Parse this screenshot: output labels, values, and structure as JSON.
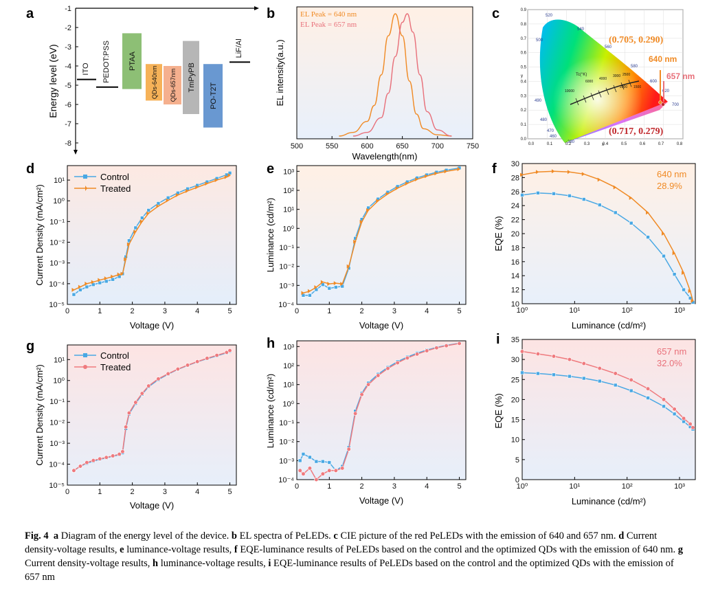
{
  "panels": {
    "a": {
      "letter": "a",
      "ylabel": "Energy level (eV)",
      "ylim": [
        -8,
        -1
      ],
      "yticks": [
        "-1",
        "-2",
        "-3",
        "-4",
        "-5",
        "-6",
        "-7",
        "-8"
      ],
      "layers": [
        {
          "name": "ITO",
          "type": "line",
          "level": -4.7,
          "color": "#000000"
        },
        {
          "name": "PEDOT:PSS",
          "type": "line",
          "level": -5.1,
          "color": "#000000"
        },
        {
          "name": "PTAA",
          "type": "band",
          "top": -2.3,
          "bottom": -5.2,
          "color": "#79b45d"
        },
        {
          "name": "QDs-640nm",
          "type": "band",
          "top": -3.9,
          "bottom": -5.8,
          "color": "#f5a53b"
        },
        {
          "name": "QDs-657nm",
          "type": "band",
          "top": -4.0,
          "bottom": -6.0,
          "color": "#f3a27a"
        },
        {
          "name": "TmPyPB",
          "type": "band",
          "top": -2.7,
          "bottom": -6.5,
          "color": "#a9a9a9"
        },
        {
          "name": "PO-T2T",
          "type": "band",
          "top": -3.9,
          "bottom": -7.2,
          "color": "#4f86c9"
        },
        {
          "name": "LiF/Al",
          "type": "line",
          "level": -3.8,
          "color": "#000000"
        }
      ]
    },
    "b": {
      "letter": "b",
      "ylabel": "EL intensity(a.u.)",
      "xlabel": "Wavelength(nm)",
      "xticks": [
        "500",
        "550",
        "600",
        "650",
        "700",
        "750"
      ],
      "legend": [
        "EL Peak = 640 nm",
        "EL Peak = 657 nm"
      ],
      "colors": [
        "#f08a24",
        "#e8707a"
      ]
    },
    "c": {
      "letter": "c",
      "coord1": "(0.705, 0.290)",
      "coord2": "(0.717, 0.279)",
      "label1": "640 nm",
      "label2": "657 nm",
      "xticks": [
        "0.0",
        "0.1",
        "0.2",
        "0.3",
        "0.4",
        "0.5",
        "0.6",
        "0.7",
        "0.8"
      ],
      "yticks": [
        "0.0",
        "0.1",
        "0.2",
        "0.3",
        "0.4",
        "0.5",
        "0.6",
        "0.7",
        "0.8",
        "0.9"
      ],
      "wavelengths": [
        "520",
        "540",
        "560",
        "580",
        "600",
        "620",
        "700",
        "500",
        "490",
        "480",
        "470",
        "460",
        "380"
      ],
      "locus_label": "Tc(°K)",
      "temps": [
        "10000",
        "6000",
        "4000",
        "3000",
        "2500",
        "2000",
        "1500"
      ],
      "x_axis_letter": "x",
      "y_axis_letter": "y"
    },
    "d": {
      "letter": "d",
      "ylabel": "Current Density (mA/cm²)",
      "xlabel": "Voltage (V)",
      "xticks": [
        "0",
        "1",
        "2",
        "3",
        "4",
        "5"
      ],
      "yticks": [
        "10⁻⁵",
        "10⁻⁴",
        "10⁻³",
        "10⁻²",
        "10⁻¹",
        "10⁰",
        "10¹"
      ],
      "legend": [
        "Control",
        "Treated"
      ]
    },
    "e": {
      "letter": "e",
      "ylabel": "Luminance (cd/m²)",
      "xlabel": "Voltage (V)",
      "xticks": [
        "0",
        "1",
        "2",
        "3",
        "4",
        "5"
      ],
      "yticks": [
        "10⁻⁴",
        "10⁻³",
        "10⁻²",
        "10⁻¹",
        "10⁰",
        "10¹",
        "10²",
        "10³"
      ]
    },
    "f": {
      "letter": "f",
      "ylabel": "EQE (%)",
      "xlabel": "Luminance (cd/m²)",
      "xticks": [
        "10⁰",
        "10¹",
        "10²",
        "10³"
      ],
      "yticks": [
        "10",
        "12",
        "14",
        "16",
        "18",
        "20",
        "22",
        "24",
        "26",
        "28",
        "30"
      ],
      "annot1": "640 nm",
      "annot2": "28.9%"
    },
    "g": {
      "letter": "g",
      "ylabel": "Current Density (mA/cm²)",
      "xlabel": "Voltage (V)",
      "xticks": [
        "0",
        "1",
        "2",
        "3",
        "4",
        "5"
      ],
      "yticks": [
        "10⁻⁵",
        "10⁻⁴",
        "10⁻³",
        "10⁻²",
        "10⁻¹",
        "10⁰",
        "10¹"
      ],
      "legend": [
        "Control",
        "Treated"
      ]
    },
    "h": {
      "letter": "h",
      "ylabel": "Luminance (cd/m²)",
      "xlabel": "Voltage (V)",
      "xticks": [
        "0",
        "1",
        "2",
        "3",
        "4",
        "5"
      ],
      "yticks": [
        "10⁻⁴",
        "10⁻³",
        "10⁻²",
        "10⁻¹",
        "10⁰",
        "10¹",
        "10²",
        "10³"
      ]
    },
    "i": {
      "letter": "i",
      "ylabel": "EQE (%)",
      "xlabel": "Luminance (cd/m²)",
      "xticks": [
        "10⁰",
        "10¹",
        "10²",
        "10³"
      ],
      "yticks": [
        "0",
        "5",
        "10",
        "15",
        "20",
        "25",
        "30",
        "35"
      ],
      "annot1": "657 nm",
      "annot2": "32.0%"
    }
  },
  "chart_data": [
    {
      "type": "line",
      "panel": "b",
      "title": "",
      "xlabel": "Wavelength(nm)",
      "ylabel": "EL intensity(a.u.)",
      "xlim": [
        500,
        750
      ],
      "series": [
        {
          "name": "EL Peak = 640 nm",
          "x": [
            560,
            580,
            600,
            610,
            620,
            630,
            640,
            650,
            660,
            670,
            680,
            700,
            720
          ],
          "values": [
            0.0,
            0.03,
            0.12,
            0.25,
            0.5,
            0.82,
            1.0,
            0.82,
            0.45,
            0.18,
            0.06,
            0.01,
            0.0
          ]
        },
        {
          "name": "EL Peak = 657 nm",
          "x": [
            580,
            600,
            620,
            630,
            640,
            650,
            657,
            665,
            675,
            685,
            700,
            720
          ],
          "values": [
            0.0,
            0.03,
            0.15,
            0.35,
            0.65,
            0.93,
            1.0,
            0.85,
            0.5,
            0.2,
            0.05,
            0.0
          ]
        }
      ]
    },
    {
      "type": "line",
      "panel": "d",
      "xlabel": "Voltage (V)",
      "ylabel": "Current Density (mA/cm²)",
      "yscale": "log",
      "xlim": [
        0,
        5.2
      ],
      "ylim": [
        1e-05,
        50
      ],
      "series": [
        {
          "name": "Control",
          "x": [
            0.2,
            0.4,
            0.6,
            0.8,
            1.0,
            1.2,
            1.4,
            1.6,
            1.7,
            1.8,
            1.9,
            2.1,
            2.3,
            2.5,
            2.8,
            3.1,
            3.4,
            3.7,
            4.0,
            4.3,
            4.6,
            4.9,
            5.0
          ],
          "values": [
            3e-05,
            5e-05,
            7e-05,
            9e-05,
            0.00011,
            0.00013,
            0.00016,
            0.00022,
            0.0003,
            0.002,
            0.012,
            0.05,
            0.15,
            0.35,
            0.75,
            1.4,
            2.4,
            3.8,
            5.6,
            8.2,
            12,
            18,
            22
          ]
        },
        {
          "name": "Treated",
          "x": [
            0.2,
            0.4,
            0.6,
            0.8,
            1.0,
            1.2,
            1.4,
            1.6,
            1.7,
            1.8,
            1.9,
            2.1,
            2.3,
            2.5,
            2.8,
            3.1,
            3.4,
            3.7,
            4.0,
            4.3,
            4.6,
            4.9,
            5.0
          ],
          "values": [
            5e-05,
            7e-05,
            0.0001,
            0.00012,
            0.00015,
            0.00018,
            0.00022,
            0.00028,
            0.0003,
            0.0015,
            0.008,
            0.032,
            0.1,
            0.25,
            0.55,
            1.05,
            1.9,
            3.0,
            4.5,
            6.8,
            10,
            14,
            17
          ]
        }
      ]
    },
    {
      "type": "line",
      "panel": "e",
      "xlabel": "Voltage (V)",
      "ylabel": "Luminance (cd/m²)",
      "yscale": "log",
      "xlim": [
        0,
        5.2
      ],
      "ylim": [
        0.0001,
        2000
      ],
      "series": [
        {
          "name": "Control",
          "x": [
            0.2,
            0.4,
            0.6,
            0.8,
            1.0,
            1.2,
            1.4,
            1.6,
            1.8,
            2.0,
            2.2,
            2.5,
            2.8,
            3.1,
            3.4,
            3.7,
            4.0,
            4.3,
            4.6,
            5.0
          ],
          "values": [
            0.0003,
            0.0003,
            0.0006,
            0.0011,
            0.0007,
            0.0008,
            0.0009,
            0.008,
            0.3,
            3,
            12,
            35,
            80,
            160,
            280,
            450,
            650,
            900,
            1150,
            1500
          ]
        },
        {
          "name": "Treated",
          "x": [
            0.2,
            0.4,
            0.6,
            0.8,
            1.0,
            1.2,
            1.4,
            1.6,
            1.8,
            2.0,
            2.2,
            2.5,
            2.8,
            3.1,
            3.4,
            3.7,
            4.0,
            4.3,
            4.6,
            5.0
          ],
          "values": [
            0.0004,
            0.0005,
            0.0008,
            0.0015,
            0.0012,
            0.0013,
            0.0012,
            0.01,
            0.2,
            2.2,
            9,
            28,
            65,
            130,
            230,
            380,
            560,
            780,
            1000,
            1300
          ]
        }
      ]
    },
    {
      "type": "line",
      "panel": "f",
      "xlabel": "Luminance (cd/m²)",
      "ylabel": "EQE (%)",
      "xscale": "log",
      "xlim": [
        1,
        2000
      ],
      "ylim": [
        10,
        30
      ],
      "series": [
        {
          "name": "Control",
          "x": [
            1,
            2,
            4,
            8,
            15,
            30,
            60,
            120,
            250,
            500,
            800,
            1200,
            1600,
            1800
          ],
          "values": [
            25.5,
            25.8,
            25.7,
            25.4,
            24.9,
            24.1,
            23.0,
            21.5,
            19.5,
            16.8,
            14.2,
            12.0,
            10.8,
            10.2
          ]
        },
        {
          "name": "Treated",
          "x": [
            1,
            2,
            4,
            8,
            15,
            30,
            60,
            120,
            250,
            500,
            800,
            1200,
            1600,
            1800
          ],
          "values": [
            28.4,
            28.8,
            28.9,
            28.8,
            28.5,
            27.7,
            26.6,
            25.1,
            23.0,
            20.0,
            17.2,
            14.4,
            11.8,
            10.4
          ]
        }
      ]
    },
    {
      "type": "line",
      "panel": "g",
      "xlabel": "Voltage (V)",
      "ylabel": "Current Density (mA/cm²)",
      "yscale": "log",
      "xlim": [
        0,
        5.2
      ],
      "ylim": [
        1e-05,
        50
      ],
      "series": [
        {
          "name": "Control",
          "x": [
            0.2,
            0.4,
            0.6,
            0.8,
            1.0,
            1.2,
            1.4,
            1.6,
            1.7,
            1.8,
            1.9,
            2.1,
            2.3,
            2.5,
            2.8,
            3.1,
            3.4,
            3.7,
            4.0,
            4.3,
            4.6,
            4.9,
            5.0
          ],
          "values": [
            5e-05,
            8e-05,
            0.00011,
            0.00014,
            0.00017,
            0.0002,
            0.00024,
            0.00028,
            0.00035,
            0.005,
            0.025,
            0.08,
            0.22,
            0.5,
            1.1,
            2.0,
            3.4,
            5.2,
            7.8,
            11,
            15,
            21,
            25
          ]
        },
        {
          "name": "Treated",
          "x": [
            0.2,
            0.4,
            0.6,
            0.8,
            1.0,
            1.2,
            1.4,
            1.6,
            1.7,
            1.8,
            1.9,
            2.1,
            2.3,
            2.5,
            2.8,
            3.1,
            3.4,
            3.7,
            4.0,
            4.3,
            4.6,
            4.9,
            5.0
          ],
          "values": [
            5e-05,
            8e-05,
            0.00012,
            0.00015,
            0.00018,
            0.00021,
            0.00025,
            0.0003,
            0.0004,
            0.006,
            0.028,
            0.09,
            0.24,
            0.55,
            1.2,
            2.1,
            3.5,
            5.4,
            8.0,
            11.5,
            16,
            22,
            27
          ]
        }
      ]
    },
    {
      "type": "line",
      "panel": "h",
      "xlabel": "Voltage (V)",
      "ylabel": "Luminance (cd/m²)",
      "yscale": "log",
      "xlim": [
        0,
        5.2
      ],
      "ylim": [
        0.0001,
        2000
      ],
      "series": [
        {
          "name": "Control",
          "x": [
            0.1,
            0.2,
            0.4,
            0.6,
            0.8,
            1.0,
            1.2,
            1.4,
            1.6,
            1.8,
            2.0,
            2.2,
            2.5,
            2.8,
            3.1,
            3.4,
            3.7,
            4.0,
            4.3,
            4.6,
            5.0
          ],
          "values": [
            0.001,
            0.0022,
            0.0015,
            0.0009,
            0.0009,
            0.0008,
            0.0003,
            0.0005,
            0.005,
            0.4,
            3.5,
            12,
            35,
            80,
            160,
            280,
            450,
            650,
            900,
            1150,
            1500
          ]
        },
        {
          "name": "Treated",
          "x": [
            0.1,
            0.2,
            0.4,
            0.6,
            0.8,
            1.0,
            1.2,
            1.4,
            1.6,
            1.8,
            2.0,
            2.2,
            2.5,
            2.8,
            3.1,
            3.4,
            3.7,
            4.0,
            4.3,
            4.6,
            5.0
          ],
          "values": [
            0.0003,
            0.0002,
            0.0004,
            0.0001,
            0.0002,
            0.0003,
            0.0003,
            0.0004,
            0.004,
            0.3,
            3,
            10,
            30,
            70,
            140,
            250,
            400,
            600,
            850,
            1100,
            1450
          ]
        }
      ]
    },
    {
      "type": "line",
      "panel": "i",
      "xlabel": "Luminance (cd/m²)",
      "ylabel": "EQE (%)",
      "xscale": "log",
      "xlim": [
        1,
        2000
      ],
      "ylim": [
        0,
        35
      ],
      "series": [
        {
          "name": "Control",
          "x": [
            1,
            2,
            4,
            8,
            15,
            30,
            60,
            120,
            250,
            500,
            800,
            1200,
            1600,
            1800
          ],
          "values": [
            26.7,
            26.5,
            26.2,
            25.8,
            25.3,
            24.6,
            23.6,
            22.2,
            20.4,
            18.3,
            16.4,
            14.5,
            13.2,
            12.6
          ]
        },
        {
          "name": "Treated",
          "x": [
            1,
            2,
            4,
            8,
            15,
            30,
            60,
            120,
            250,
            500,
            800,
            1200,
            1600,
            1800
          ],
          "values": [
            32.0,
            31.4,
            30.8,
            30.0,
            29.0,
            27.8,
            26.5,
            24.9,
            22.7,
            20.0,
            17.6,
            15.3,
            13.9,
            13.0
          ]
        }
      ]
    }
  ],
  "caption": {
    "label": "Fig. 4",
    "a": "a",
    "a_text": " Diagram of the energy level of the device. ",
    "b": "b",
    "b_text": " EL spectra of PeLEDs. ",
    "c": "c",
    "c_text": " CIE picture of the red PeLEDs with the emission of 640 and 657 nm. ",
    "d": "d",
    "d_text": " Current density-voltage results, ",
    "e": "e",
    "e_text": " luminance-voltage results, ",
    "f": "f",
    "f_text": " EQE-luminance results of PeLEDs based on the control and the optimized QDs with the emission of 640 nm. ",
    "g": "g",
    "g_text": " Current density-voltage results, ",
    "h": "h",
    "h_text": " luminance-voltage results, ",
    "i": "i",
    "i_text": " EQE-luminance results of PeLEDs based on the control and the optimized QDs with the emission of 657 nm"
  },
  "colors": {
    "control": "#49a8e4",
    "treated_640": "#f08a24",
    "treated_657": "#ef7a7e",
    "orange_text": "#f08a24",
    "pink_text": "#e8707a",
    "red_text": "#c0262a"
  }
}
